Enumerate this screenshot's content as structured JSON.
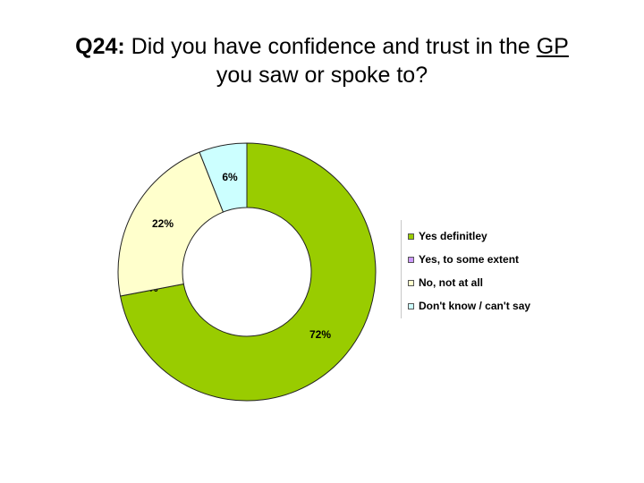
{
  "title": {
    "prefix": "Q24:",
    "part1": " Did you have confidence and trust in the ",
    "underlined": "GP",
    "line2": "you saw or spoke to?"
  },
  "chart_data": {
    "type": "pie",
    "donut": true,
    "categories": [
      "Yes definitley",
      "Yes, to some extent",
      "No, not at all",
      "Don't know / can't say"
    ],
    "values": [
      72,
      0,
      22,
      6
    ],
    "labels": [
      "72%",
      "0%",
      "22%",
      "6%"
    ],
    "colors": [
      "#99cc00",
      "#cc99ff",
      "#ffffcc",
      "#ccffff"
    ],
    "legend_placement": "right"
  }
}
